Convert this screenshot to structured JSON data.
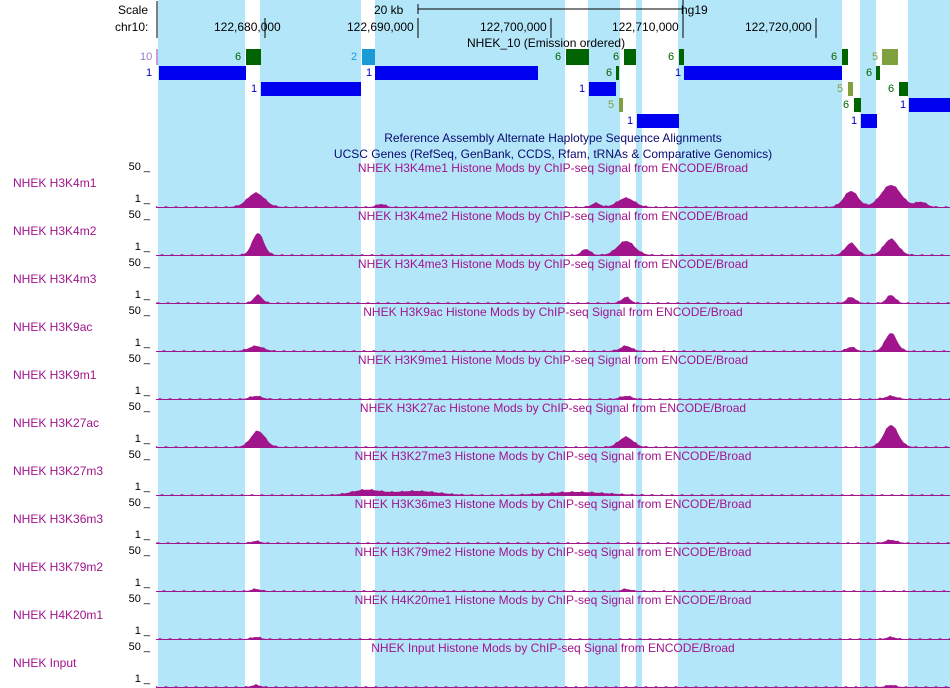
{
  "ruler": {
    "scale_label": "Scale",
    "chrom_label": "chr10:",
    "scale_bar_label": "20 kb",
    "assembly": "hg19",
    "positions": [
      "122,680,000",
      "122,690,000",
      "122,700,000",
      "122,710,000",
      "122,720,000"
    ]
  },
  "hmm_track": {
    "title": "NHEK_10 (Emission ordered)",
    "blocks": [
      {
        "label": "10",
        "color": "#c89be6"
      },
      {
        "label": "6",
        "color": "#006400"
      },
      {
        "label": "2",
        "color": "#1a9bd6"
      },
      {
        "label": "6",
        "color": "#006400"
      },
      {
        "label": "6",
        "color": "#006400"
      },
      {
        "label": "6",
        "color": "#006400"
      },
      {
        "label": "6",
        "color": "#006400"
      },
      {
        "label": "5",
        "color": "#7fa03c"
      },
      {
        "label": "6",
        "color": "#006400"
      },
      {
        "label": "5",
        "color": "#7fa03c"
      },
      {
        "label": "6",
        "color": "#006400"
      },
      {
        "label": "5",
        "color": "#7fa03c"
      },
      {
        "label": "6",
        "color": "#006400"
      },
      {
        "label": "6",
        "color": "#006400"
      }
    ],
    "genes": [
      {
        "label": "1"
      },
      {
        "label": "1"
      },
      {
        "label": "1"
      },
      {
        "label": "1"
      },
      {
        "label": "1"
      },
      {
        "label": "1"
      },
      {
        "label": "1"
      },
      {
        "label": "1"
      },
      {
        "label": "1"
      }
    ]
  },
  "reference_tracks": [
    "Reference Assembly Alternate Haplotype Sequence Alignments",
    "UCSC Genes (RefSeq, GenBank, CCDS, Rfam, tRNAs & Comparative Genomics)"
  ],
  "signal_tracks": [
    {
      "label": "NHEK H3K4m1",
      "title": "NHEK H3K4me1 Histone Mods by ChIP-seq Signal from ENCODE/Broad",
      "ymax": "50 _",
      "ymin": "1 _"
    },
    {
      "label": "NHEK H3K4m2",
      "title": "NHEK H3K4me2 Histone Mods by ChIP-seq Signal from ENCODE/Broad",
      "ymax": "50 _",
      "ymin": "1 _"
    },
    {
      "label": "NHEK H3K4m3",
      "title": "NHEK H3K4me3 Histone Mods by ChIP-seq Signal from ENCODE/Broad",
      "ymax": "50 _",
      "ymin": "1 _"
    },
    {
      "label": "NHEK H3K9ac",
      "title": "NHEK H3K9ac Histone Mods by ChIP-seq Signal from ENCODE/Broad",
      "ymax": "50 _",
      "ymin": "1 _"
    },
    {
      "label": "NHEK H3K9m1",
      "title": "NHEK H3K9me1 Histone Mods by ChIP-seq Signal from ENCODE/Broad",
      "ymax": "50 _",
      "ymin": "1 _"
    },
    {
      "label": "NHEK H3K27ac",
      "title": "NHEK H3K27ac Histone Mods by ChIP-seq Signal from ENCODE/Broad",
      "ymax": "50 _",
      "ymin": "1 _"
    },
    {
      "label": "NHEK H3K27m3",
      "title": "NHEK H3K27me3 Histone Mods by ChIP-seq Signal from ENCODE/Broad",
      "ymax": "50 _",
      "ymin": "1 _"
    },
    {
      "label": "NHEK H3K36m3",
      "title": "NHEK H3K36me3 Histone Mods by ChIP-seq Signal from ENCODE/Broad",
      "ymax": "50 _",
      "ymin": "1 _"
    },
    {
      "label": "NHEK H3K79m2",
      "title": "NHEK H3K79me2 Histone Mods by ChIP-seq Signal from ENCODE/Broad",
      "ymax": "50 _",
      "ymin": "1 _"
    },
    {
      "label": "NHEK H4K20m1",
      "title": "NHEK H4K20me1 Histone Mods by ChIP-seq Signal from ENCODE/Broad",
      "ymax": "50 _",
      "ymin": "1 _"
    },
    {
      "label": "NHEK Input",
      "title": "NHEK Input Histone Mods by ChIP-seq Signal from ENCODE/Broad",
      "ymax": "50 _",
      "ymin": "1 _"
    }
  ],
  "colors": {
    "highlight_band": "#b4e6fa",
    "signal": "#a0148c",
    "gene": "#0000f0",
    "label": "#a0148c"
  }
}
